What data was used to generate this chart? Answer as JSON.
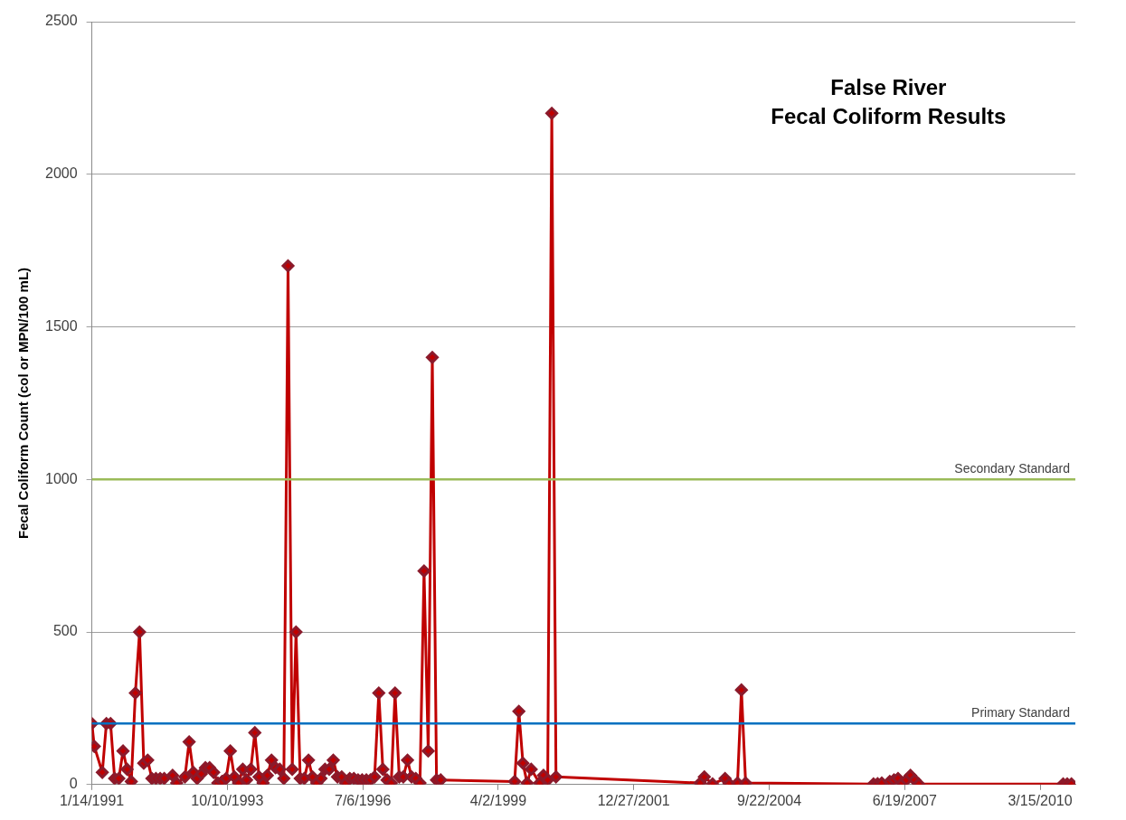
{
  "chart_data": {
    "type": "line",
    "title": "False River",
    "subtitle": "Fecal Coliform Results",
    "ylabel": "Fecal Coliform Count (col or MPN/100 mL)",
    "x": [
      "1991-01-14",
      "1991-02",
      "1991-04",
      "1991-05",
      "1991-06",
      "1991-07",
      "1991-08",
      "1991-09",
      "1991-10",
      "1991-11",
      "1991-12",
      "1992-01",
      "1992-02",
      "1992-03",
      "1992-04",
      "1992-05",
      "1992-06",
      "1992-07",
      "1992-09",
      "1992-10",
      "1992-12",
      "1993-01",
      "1993-02",
      "1993-03",
      "1993-04",
      "1993-05",
      "1993-06",
      "1993-07",
      "1993-08",
      "1993-09",
      "1993-10",
      "1993-11",
      "1993-12",
      "1994-01",
      "1994-02",
      "1994-03",
      "1994-04",
      "1994-05",
      "1994-06",
      "1994-07",
      "1994-08",
      "1994-09",
      "1994-10",
      "1994-11",
      "1994-12",
      "1995-01",
      "1995-02",
      "1995-03",
      "1995-04",
      "1995-05",
      "1995-06",
      "1995-07",
      "1995-08",
      "1995-09",
      "1995-10",
      "1995-11",
      "1995-12",
      "1996-01",
      "1996-02",
      "1996-03",
      "1996-04",
      "1996-05",
      "1996-06",
      "1996-07",
      "1996-08",
      "1996-09",
      "1996-10",
      "1996-11",
      "1996-12",
      "1997-01",
      "1997-02",
      "1997-03",
      "1997-04",
      "1997-05",
      "1997-06",
      "1997-07",
      "1997-08",
      "1997-09",
      "1997-10",
      "1997-11",
      "1997-12",
      "1998-01",
      "1998-02",
      "1999-08",
      "1999-09",
      "1999-10",
      "1999-11",
      "1999-12",
      "2000-02",
      "2000-03",
      "2000-04",
      "2000-05",
      "2000-06",
      "2003-05",
      "2003-06",
      "2003-08",
      "2003-11",
      "2003-12",
      "2004-02",
      "2004-03",
      "2004-04",
      "2006-11",
      "2006-12",
      "2007-01",
      "2007-03",
      "2007-04",
      "2007-05",
      "2007-06",
      "2007-07",
      "2007-08",
      "2007-09",
      "2007-10",
      "2010-09",
      "2010-10",
      "2010-11"
    ],
    "series": [
      {
        "color": "#c00000",
        "values": [
          200,
          125,
          40,
          200,
          200,
          20,
          20,
          110,
          50,
          10,
          300,
          500,
          70,
          80,
          20,
          20,
          20,
          20,
          30,
          5,
          25,
          140,
          40,
          20,
          35,
          55,
          55,
          40,
          5,
          10,
          20,
          110,
          25,
          5,
          50,
          15,
          50,
          170,
          25,
          5,
          30,
          80,
          55,
          50,
          20,
          1700,
          50,
          500,
          20,
          20,
          80,
          25,
          5,
          20,
          50,
          50,
          80,
          25,
          25,
          5,
          20,
          20,
          15,
          15,
          15,
          15,
          25,
          300,
          50,
          15,
          5,
          300,
          25,
          25,
          80,
          25,
          20,
          5,
          700,
          110,
          1400,
          15,
          15,
          10,
          240,
          70,
          5,
          50,
          5,
          30,
          15,
          2200,
          25,
          5,
          25,
          2,
          20,
          3,
          5,
          310,
          5,
          2,
          3,
          5,
          10,
          15,
          20,
          5,
          15,
          30,
          15,
          2,
          2,
          2,
          2
        ]
      }
    ],
    "xlim": [
      "1991-01-14",
      "2010-11-30"
    ],
    "xticks": [
      {
        "value": "1991-01-14",
        "label": "1/14/1991"
      },
      {
        "value": "1993-10-10",
        "label": "10/10/1993"
      },
      {
        "value": "1996-07-06",
        "label": "7/6/1996"
      },
      {
        "value": "1999-04-02",
        "label": "4/2/1999"
      },
      {
        "value": "2001-12-27",
        "label": "12/27/2001"
      },
      {
        "value": "2004-09-22",
        "label": "9/22/2004"
      },
      {
        "value": "2007-06-19",
        "label": "6/19/2007"
      },
      {
        "value": "2010-03-15",
        "label": "3/15/2010"
      }
    ],
    "ylim": [
      0,
      2500
    ],
    "yticks": [
      0,
      500,
      1000,
      1500,
      2000,
      2500
    ],
    "ref_lines": [
      {
        "axis": "y",
        "value": 200,
        "label": "Primary Standard",
        "color": "#0070c0"
      },
      {
        "axis": "y",
        "value": 1000,
        "label": "Secondary Standard",
        "color": "#9bbb59"
      }
    ],
    "grid": "y",
    "legend": false,
    "marker": "diamond",
    "line_style": "solid"
  }
}
